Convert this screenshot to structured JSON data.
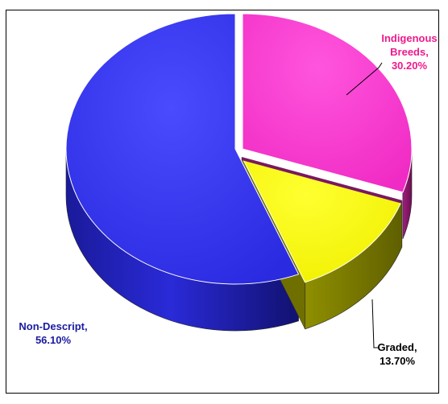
{
  "chart_data": {
    "type": "pie",
    "style": "3d-exploded",
    "slices": [
      {
        "label": "Indigenous Breeds",
        "value": 30.2,
        "label_text": [
          "Indigenous",
          "Breeds,",
          "30.20%"
        ],
        "color": "#ff33cc",
        "text_color": "#ee1a8c"
      },
      {
        "label": "Graded",
        "value": 13.7,
        "label_text": [
          "Graded,",
          "13.70%"
        ],
        "color": "#ffff00",
        "text_color": "#000000"
      },
      {
        "label": "Non-Descript",
        "value": 56.1,
        "label_text": [
          "Non-Descript,",
          "56.10%"
        ],
        "color": "#3333ee",
        "text_color": "#1a1aa0"
      }
    ],
    "legend": "none"
  }
}
